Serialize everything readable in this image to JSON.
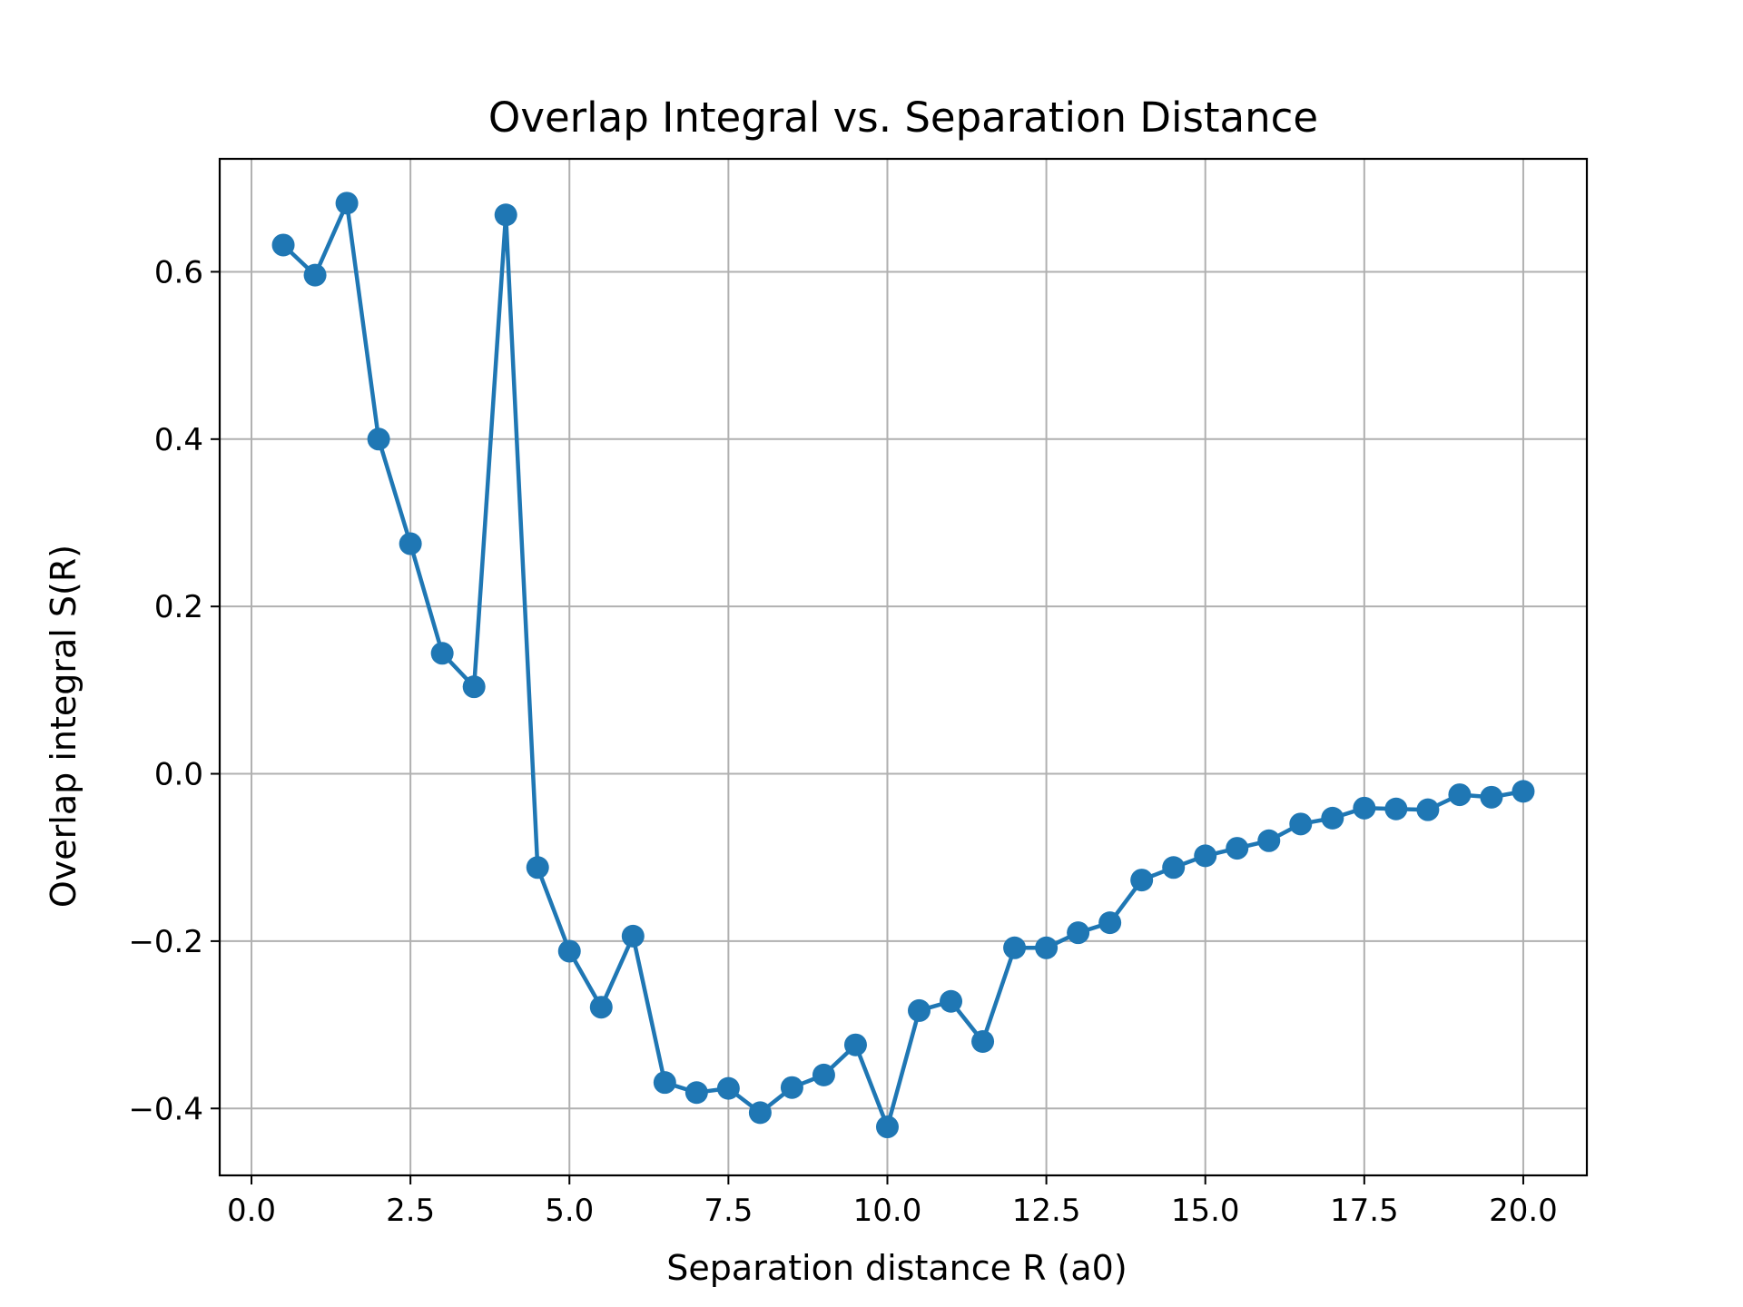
{
  "chart_data": {
    "type": "line",
    "title": "Overlap Integral vs. Separation Distance",
    "xlabel": "Separation distance R (a0)",
    "ylabel": "Overlap integral S(R)",
    "xlim": [
      -0.5,
      21.0
    ],
    "ylim": [
      -0.48,
      0.735
    ],
    "grid": true,
    "color": "#1f77b4",
    "marker": "circle",
    "xticks": [
      0.0,
      2.5,
      5.0,
      7.5,
      10.0,
      12.5,
      15.0,
      17.5,
      20.0
    ],
    "xtick_labels": [
      "0.0",
      "2.5",
      "5.0",
      "7.5",
      "10.0",
      "12.5",
      "15.0",
      "17.5",
      "20.0"
    ],
    "yticks": [
      -0.4,
      -0.2,
      0.0,
      0.2,
      0.4,
      0.6
    ],
    "ytick_labels": [
      "−0.4",
      "−0.2",
      "0.0",
      "0.2",
      "0.4",
      "0.6"
    ],
    "x": [
      0.5,
      1.0,
      1.5,
      2.0,
      2.5,
      3.0,
      3.5,
      4.0,
      4.5,
      5.0,
      5.5,
      6.0,
      6.5,
      7.0,
      7.5,
      8.0,
      8.5,
      9.0,
      9.5,
      10.0,
      10.5,
      11.0,
      11.5,
      12.0,
      12.5,
      13.0,
      13.5,
      14.0,
      14.5,
      15.0,
      15.5,
      16.0,
      16.5,
      17.0,
      17.5,
      18.0,
      18.5,
      19.0,
      19.5,
      20.0
    ],
    "y": [
      0.632,
      0.596,
      0.682,
      0.4,
      0.275,
      0.144,
      0.104,
      0.668,
      -0.112,
      -0.212,
      -0.279,
      -0.194,
      -0.369,
      -0.381,
      -0.376,
      -0.405,
      -0.375,
      -0.36,
      -0.324,
      -0.422,
      -0.283,
      -0.272,
      -0.32,
      -0.208,
      -0.208,
      -0.19,
      -0.178,
      -0.127,
      -0.112,
      -0.098,
      -0.089,
      -0.08,
      -0.06,
      -0.053,
      -0.041,
      -0.042,
      -0.043,
      -0.025,
      -0.028,
      -0.021
    ]
  }
}
